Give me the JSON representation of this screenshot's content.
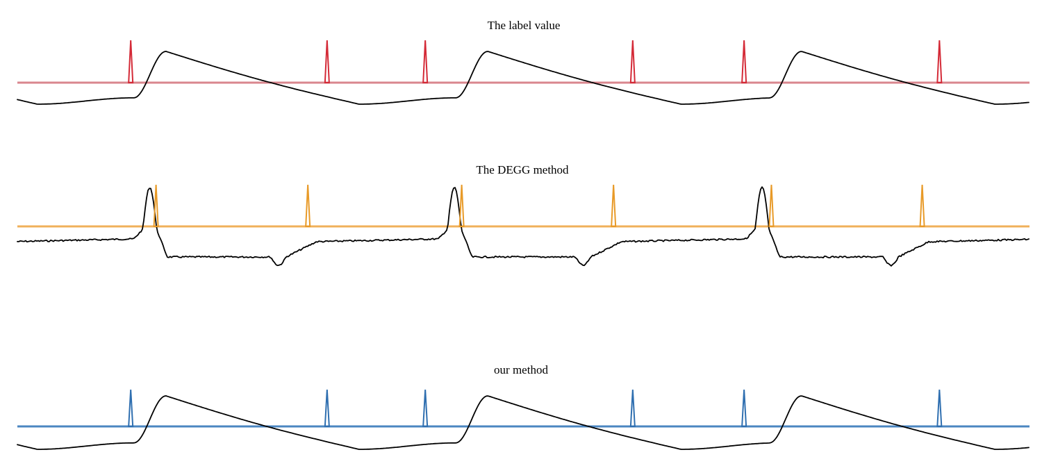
{
  "chart_data": [
    {
      "type": "line",
      "title": "The label value",
      "xlabel": "",
      "ylabel": "",
      "grid": false,
      "legend": "none",
      "color": "#d9868e",
      "marker_color": "#d42a37",
      "signal_shape": "egg",
      "cycle_starts": [
        0.115,
        0.433,
        0.743
      ],
      "markers": [
        0.112,
        0.306,
        0.403,
        0.608,
        0.718,
        0.911
      ],
      "marker_heights": [
        1,
        1,
        1,
        1,
        1,
        1
      ]
    },
    {
      "type": "line",
      "title": "The DEGG method",
      "xlabel": "",
      "ylabel": "",
      "grid": false,
      "legend": "none",
      "color": "#f0b05a",
      "marker_color": "#e89a28",
      "signal_shape": "degg",
      "cycle_starts": [
        0.115,
        0.416,
        0.72
      ],
      "markers": [
        0.137,
        0.287,
        0.439,
        0.589,
        0.745,
        0.894
      ],
      "marker_heights": [
        1,
        1,
        1,
        1,
        1,
        1
      ]
    },
    {
      "type": "line",
      "title": "our method",
      "xlabel": "",
      "ylabel": "",
      "grid": false,
      "legend": "none",
      "color": "#4b86c1",
      "marker_color": "#2f6fb0",
      "signal_shape": "egg",
      "cycle_starts": [
        0.115,
        0.433,
        0.743
      ],
      "markers": [
        0.112,
        0.306,
        0.403,
        0.608,
        0.718,
        0.911
      ],
      "marker_heights": [
        1,
        1,
        1,
        1,
        1,
        1
      ]
    }
  ]
}
